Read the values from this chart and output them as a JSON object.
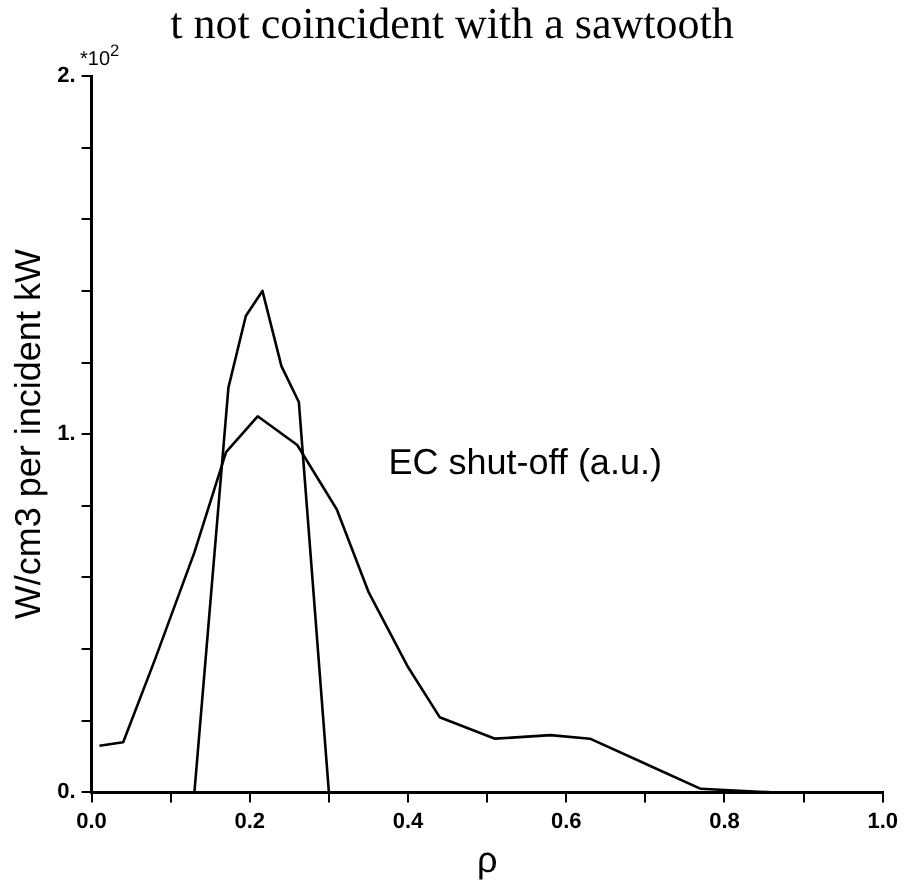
{
  "chart_data": {
    "type": "line",
    "ylabel": "W/cm3 per incident kW",
    "xlabel": "ρ",
    "annotations": [
      "t not coincident with a sawtooth",
      "*10$^{2}$"
    ],
    "xlim": [
      0,
      1
    ],
    "xticks": [
      {
        "value": 0,
        "label": "0.0"
      },
      {
        "value": 0.1,
        "label": null
      },
      {
        "value": 0.2,
        "label": "0.2"
      },
      {
        "value": 0.3,
        "label": null
      },
      {
        "value": 0.4,
        "label": "0.4"
      },
      {
        "value": 0.5,
        "label": null
      },
      {
        "value": 0.6,
        "label": "0.6"
      },
      {
        "value": 0.7,
        "label": null
      },
      {
        "value": 0.8,
        "label": "0.8"
      },
      {
        "value": 0.9,
        "label": null
      },
      {
        "value": 1,
        "label": "1.0"
      }
    ],
    "ylim": [
      0,
      2
    ],
    "yticks": [
      {
        "value": 0,
        "label": "0."
      },
      {
        "value": 0.2,
        "label": null
      },
      {
        "value": 0.4,
        "label": null
      },
      {
        "value": 0.6,
        "label": null
      },
      {
        "value": 0.8,
        "label": null
      },
      {
        "value": 1,
        "label": "1."
      },
      {
        "value": 1.2,
        "label": null
      },
      {
        "value": 1.4,
        "label": null
      },
      {
        "value": 1.6,
        "label": null
      },
      {
        "value": 1.8,
        "label": null
      },
      {
        "value": 2,
        "label": "2."
      }
    ],
    "grid": false,
    "legend": false,
    "marker": "none",
    "line_style": "solid",
    "series": [
      {
        "color": "#000000",
        "x": [
          0.13,
          0.173,
          0.195,
          0.216,
          0.24,
          0.262,
          0.3
        ],
        "values": [
          0,
          1.13,
          1.33,
          1.4,
          1.19,
          1.09,
          0
        ]
      },
      {
        "name": "EC shut-off (a.u.)",
        "color": "#000000",
        "x": [
          0.01,
          0.04,
          0.08,
          0.13,
          0.17,
          0.21,
          0.26,
          0.31,
          0.35,
          0.4,
          0.44,
          0.51,
          0.58,
          0.63,
          0.7,
          0.77,
          0.86,
          0.94,
          1.0
        ],
        "values": [
          0.13,
          0.14,
          0.37,
          0.67,
          0.95,
          1.05,
          0.97,
          0.79,
          0.56,
          0.35,
          0.21,
          0.15,
          0.16,
          0.15,
          0.08,
          0.01,
          0,
          0,
          0
        ]
      }
    ]
  }
}
